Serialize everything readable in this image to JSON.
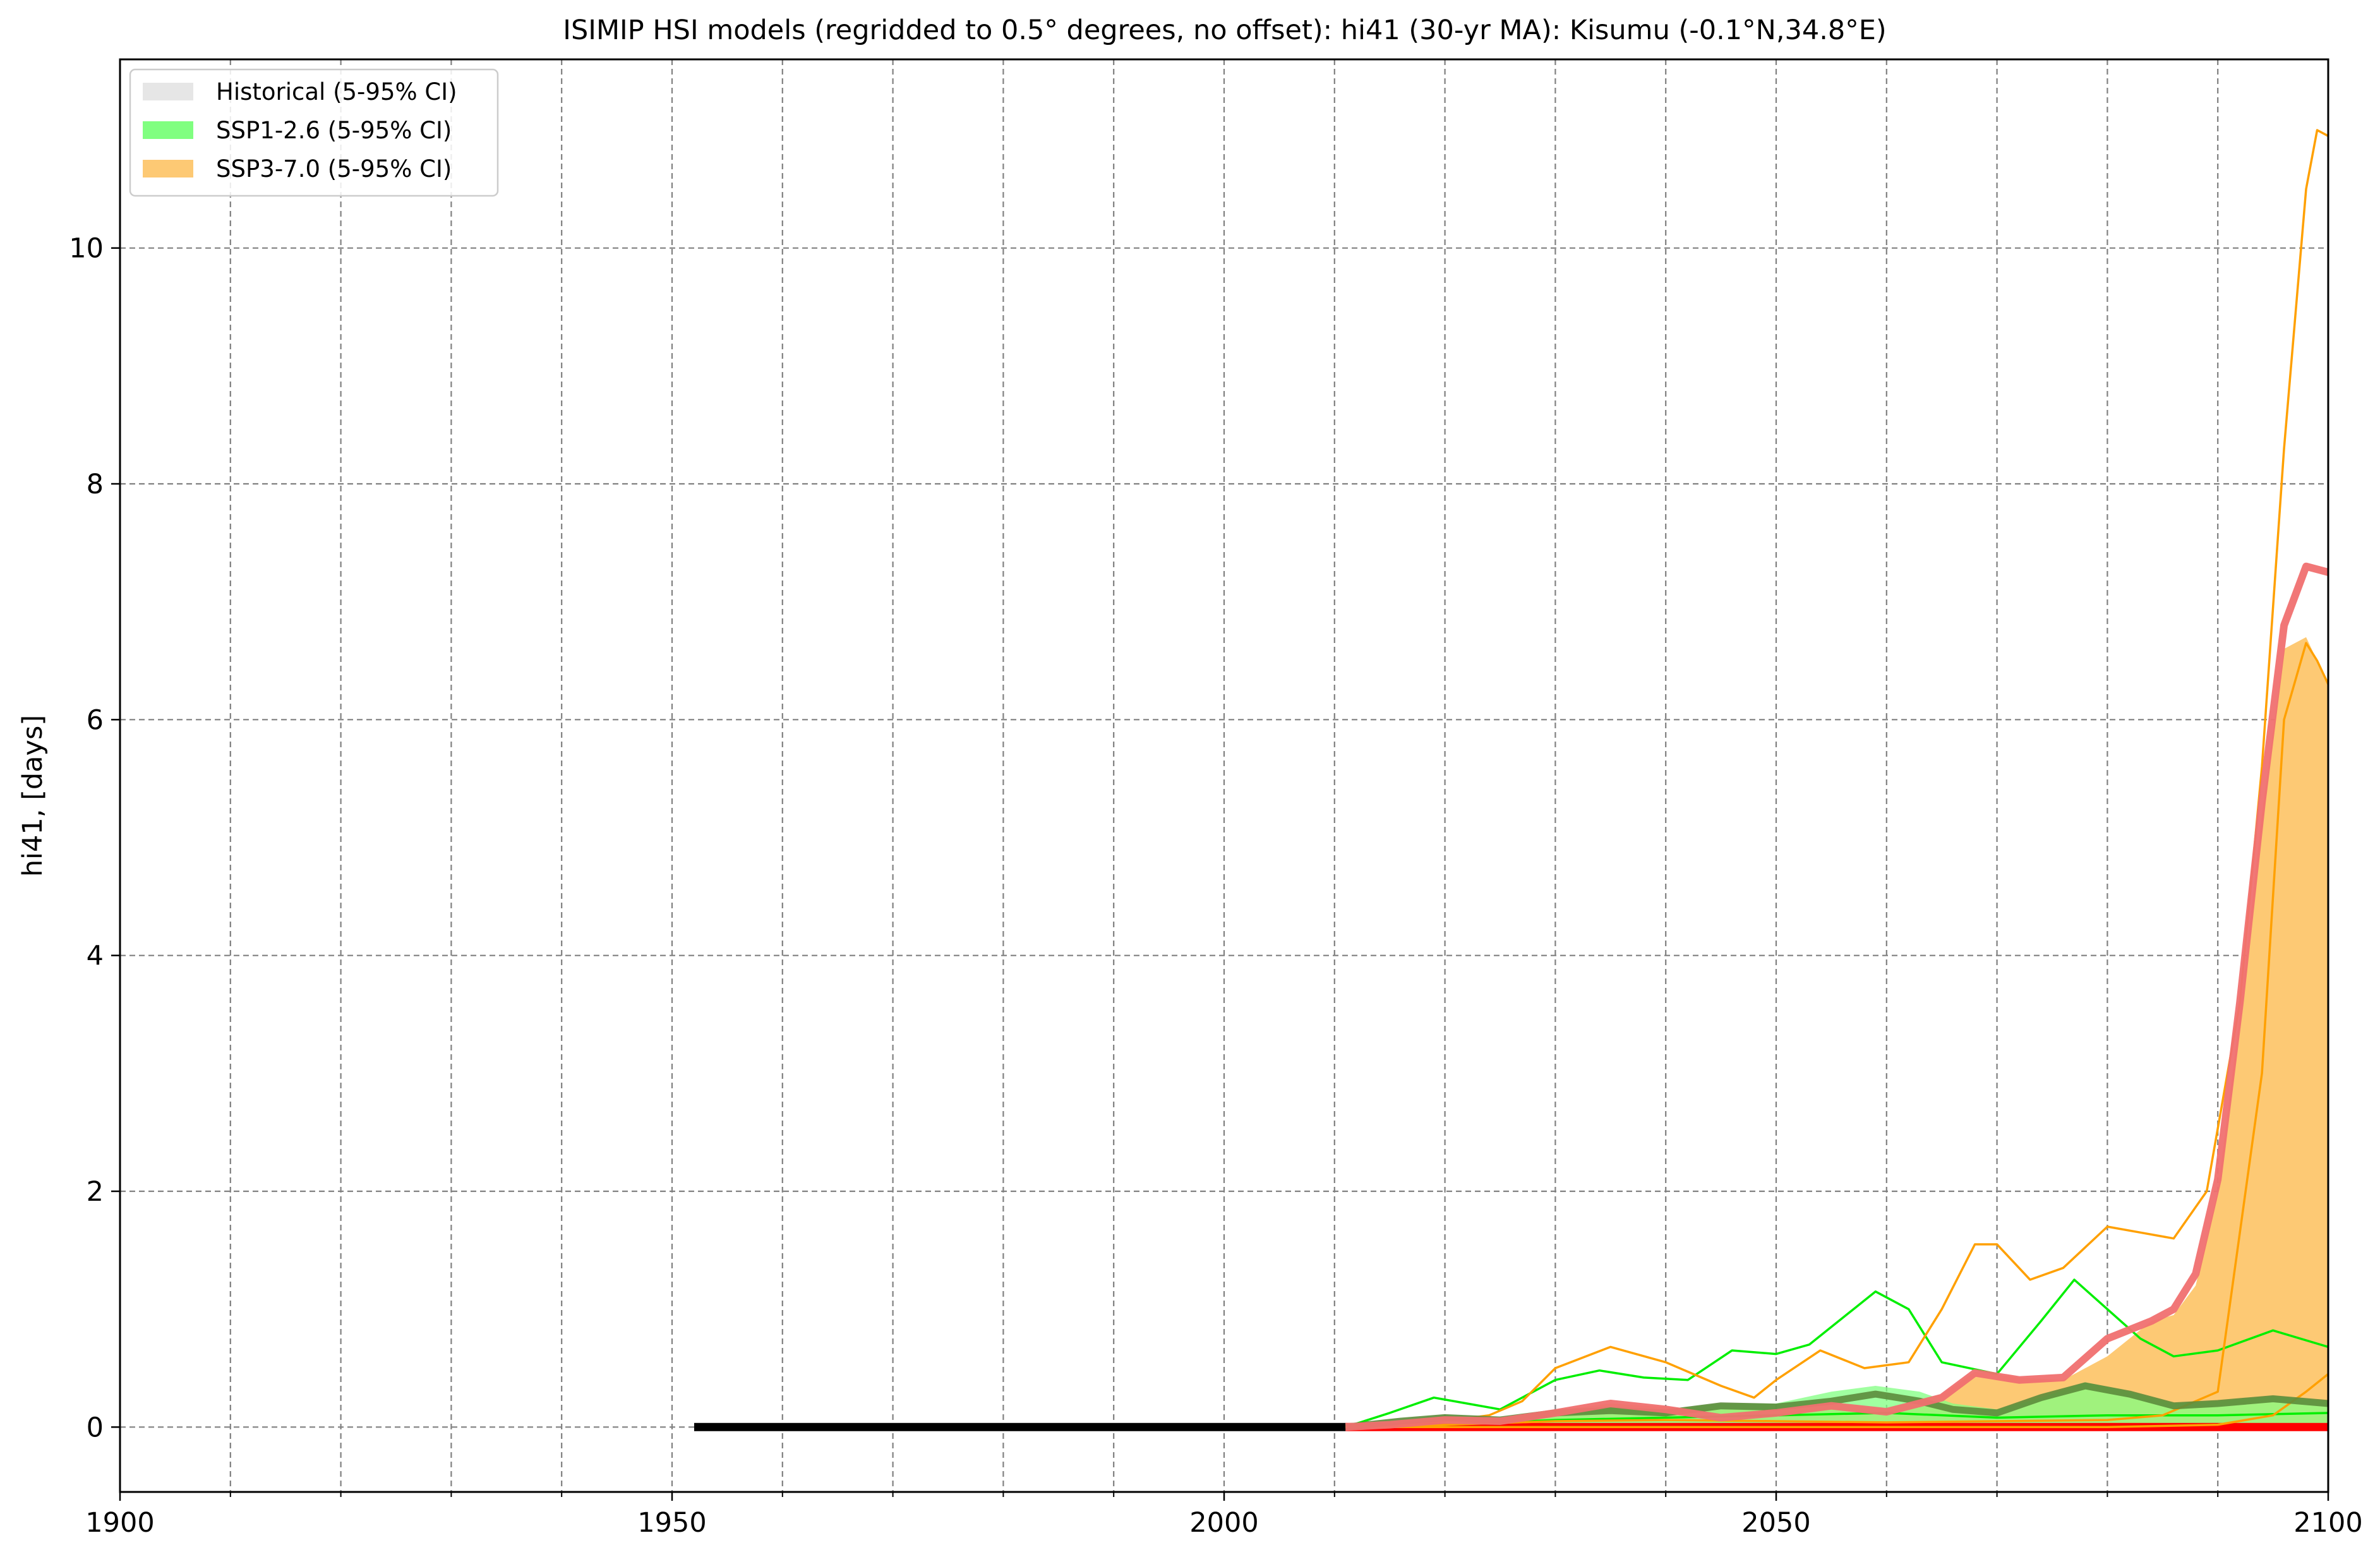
{
  "chart_data": {
    "type": "line",
    "title": "ISIMIP HSI models (regridded to 0.5° degrees, no offset): hi41 (30-yr MA): Kisumu (-0.1°N,34.8°E)",
    "xlabel": "",
    "ylabel": "hi41, [days]",
    "xlim": [
      1900,
      2100
    ],
    "ylim": [
      -0.55,
      11.6
    ],
    "x_ticks": [
      1900,
      1950,
      2000,
      2050,
      2100
    ],
    "x_minor_grid": [
      1910,
      1920,
      1930,
      1940,
      1960,
      1970,
      1980,
      1990,
      2010,
      2020,
      2030,
      2040,
      2060,
      2070,
      2080,
      2090
    ],
    "y_ticks": [
      0,
      2,
      4,
      6,
      8,
      10
    ],
    "grid": true,
    "legend_position": "top-left",
    "legend": [
      {
        "label": "Historical (5-95% CI)",
        "color": "#e6e6e6"
      },
      {
        "label": "SSP1-2.6 (5-95% CI)",
        "color": "#80ff80"
      },
      {
        "label": "SSP3-7.0 (5-95% CI)",
        "color": "#fdc974"
      }
    ],
    "colors": {
      "historical_mean": "#000000",
      "ssp126_band": "#80ff80",
      "ssp126_models": "#00ee00",
      "ssp126_median": "#5c8c3c",
      "ssp370_band": "#fdc974",
      "ssp370_models": "#ffa000",
      "ssp370_median": "#f07070",
      "ssp370_zero": "#ff0000",
      "grid": "#808080"
    },
    "series": [
      {
        "key": "historical_mean",
        "points": [
          [
            1952,
            0
          ],
          [
            2011,
            0
          ]
        ]
      },
      {
        "key": "ssp370_zero",
        "points": [
          [
            2011,
            0
          ],
          [
            2100,
            0
          ]
        ]
      },
      {
        "key": "ssp370_band",
        "upper": [
          [
            2011,
            0
          ],
          [
            2015,
            0.02
          ],
          [
            2020,
            0.06
          ],
          [
            2025,
            0.08
          ],
          [
            2030,
            0.14
          ],
          [
            2035,
            0.2
          ],
          [
            2040,
            0.17
          ],
          [
            2045,
            0.15
          ],
          [
            2050,
            0.15
          ],
          [
            2055,
            0.2
          ],
          [
            2060,
            0.15
          ],
          [
            2065,
            0.28
          ],
          [
            2068,
            0.47
          ],
          [
            2072,
            0.42
          ],
          [
            2076,
            0.4
          ],
          [
            2080,
            0.6
          ],
          [
            2084,
            0.9
          ],
          [
            2086,
            0.95
          ],
          [
            2088,
            1.2
          ],
          [
            2090,
            2.0
          ],
          [
            2092,
            3.5
          ],
          [
            2094,
            5.2
          ],
          [
            2096,
            6.6
          ],
          [
            2098,
            6.7
          ],
          [
            2100,
            6.3
          ]
        ],
        "lower": [
          [
            2011,
            0
          ],
          [
            2100,
            0
          ]
        ]
      },
      {
        "key": "ssp126_band",
        "upper": [
          [
            2011,
            0
          ],
          [
            2016,
            0.06
          ],
          [
            2020,
            0.1
          ],
          [
            2025,
            0.08
          ],
          [
            2030,
            0.15
          ],
          [
            2035,
            0.18
          ],
          [
            2040,
            0.15
          ],
          [
            2045,
            0.2
          ],
          [
            2050,
            0.2
          ],
          [
            2055,
            0.3
          ],
          [
            2059,
            0.35
          ],
          [
            2063,
            0.3
          ],
          [
            2066,
            0.2
          ],
          [
            2070,
            0.15
          ],
          [
            2074,
            0.25
          ],
          [
            2078,
            0.38
          ],
          [
            2082,
            0.3
          ],
          [
            2086,
            0.2
          ],
          [
            2090,
            0.22
          ],
          [
            2095,
            0.26
          ],
          [
            2100,
            0.22
          ]
        ],
        "lower": [
          [
            2011,
            0
          ],
          [
            2100,
            0
          ]
        ]
      },
      {
        "key": "ssp126_models",
        "points": [
          [
            2011,
            0
          ],
          [
            2015,
            0.12
          ],
          [
            2019,
            0.25
          ],
          [
            2022,
            0.2
          ],
          [
            2025,
            0.15
          ],
          [
            2030,
            0.4
          ],
          [
            2034,
            0.48
          ],
          [
            2038,
            0.42
          ],
          [
            2042,
            0.4
          ],
          [
            2046,
            0.65
          ],
          [
            2050,
            0.62
          ],
          [
            2053,
            0.7
          ],
          [
            2057,
            1.0
          ],
          [
            2059,
            1.15
          ],
          [
            2062,
            1.0
          ],
          [
            2065,
            0.55
          ],
          [
            2070,
            0.45
          ],
          [
            2074,
            0.9
          ],
          [
            2077,
            1.25
          ],
          [
            2080,
            1.0
          ],
          [
            2083,
            0.75
          ],
          [
            2086,
            0.6
          ],
          [
            2090,
            0.65
          ],
          [
            2095,
            0.82
          ],
          [
            2100,
            0.68
          ]
        ]
      },
      {
        "key": "ssp126_models",
        "points": [
          [
            2011,
            0
          ],
          [
            2020,
            0.02
          ],
          [
            2030,
            0.06
          ],
          [
            2040,
            0.08
          ],
          [
            2050,
            0.1
          ],
          [
            2060,
            0.12
          ],
          [
            2070,
            0.08
          ],
          [
            2080,
            0.1
          ],
          [
            2090,
            0.1
          ],
          [
            2100,
            0.12
          ]
        ]
      },
      {
        "key": "ssp370_models",
        "points": [
          [
            2011,
            0
          ],
          [
            2015,
            0.02
          ],
          [
            2020,
            0.05
          ],
          [
            2024,
            0.1
          ],
          [
            2027,
            0.22
          ],
          [
            2030,
            0.5
          ],
          [
            2035,
            0.68
          ],
          [
            2040,
            0.55
          ],
          [
            2045,
            0.35
          ],
          [
            2048,
            0.25
          ],
          [
            2050,
            0.4
          ],
          [
            2054,
            0.65
          ],
          [
            2058,
            0.5
          ],
          [
            2062,
            0.55
          ],
          [
            2065,
            1.0
          ],
          [
            2068,
            1.55
          ],
          [
            2070,
            1.55
          ],
          [
            2073,
            1.25
          ],
          [
            2076,
            1.35
          ],
          [
            2080,
            1.7
          ],
          [
            2083,
            1.65
          ],
          [
            2086,
            1.6
          ],
          [
            2089,
            2.0
          ],
          [
            2092,
            3.6
          ],
          [
            2094,
            5.6
          ],
          [
            2096,
            8.3
          ],
          [
            2098,
            10.5
          ],
          [
            2099,
            11.0
          ],
          [
            2100,
            10.95
          ]
        ]
      },
      {
        "key": "ssp370_models",
        "points": [
          [
            2011,
            0
          ],
          [
            2020,
            0.02
          ],
          [
            2030,
            0.05
          ],
          [
            2040,
            0.06
          ],
          [
            2050,
            0.05
          ],
          [
            2060,
            0.04
          ],
          [
            2070,
            0.05
          ],
          [
            2080,
            0.06
          ],
          [
            2085,
            0.1
          ],
          [
            2090,
            0.3
          ],
          [
            2094,
            3.0
          ],
          [
            2096,
            6.0
          ],
          [
            2098,
            6.65
          ],
          [
            2099,
            6.5
          ],
          [
            2100,
            6.3
          ]
        ]
      },
      {
        "key": "ssp370_models",
        "points": [
          [
            2011,
            0
          ],
          [
            2030,
            0
          ],
          [
            2060,
            0
          ],
          [
            2080,
            0
          ],
          [
            2090,
            0.02
          ],
          [
            2095,
            0.1
          ],
          [
            2098,
            0.3
          ],
          [
            2100,
            0.45
          ]
        ]
      },
      {
        "key": "ssp126_median",
        "points": [
          [
            2011,
            0
          ],
          [
            2016,
            0.05
          ],
          [
            2020,
            0.08
          ],
          [
            2025,
            0.06
          ],
          [
            2030,
            0.12
          ],
          [
            2035,
            0.14
          ],
          [
            2040,
            0.12
          ],
          [
            2045,
            0.18
          ],
          [
            2050,
            0.17
          ],
          [
            2055,
            0.22
          ],
          [
            2059,
            0.28
          ],
          [
            2063,
            0.22
          ],
          [
            2066,
            0.15
          ],
          [
            2070,
            0.12
          ],
          [
            2074,
            0.25
          ],
          [
            2078,
            0.35
          ],
          [
            2082,
            0.28
          ],
          [
            2086,
            0.18
          ],
          [
            2090,
            0.2
          ],
          [
            2095,
            0.24
          ],
          [
            2100,
            0.2
          ]
        ]
      },
      {
        "key": "ssp370_median",
        "points": [
          [
            2011,
            0
          ],
          [
            2015,
            0.02
          ],
          [
            2020,
            0.06
          ],
          [
            2025,
            0.05
          ],
          [
            2030,
            0.12
          ],
          [
            2035,
            0.2
          ],
          [
            2040,
            0.15
          ],
          [
            2045,
            0.08
          ],
          [
            2050,
            0.12
          ],
          [
            2055,
            0.18
          ],
          [
            2060,
            0.13
          ],
          [
            2065,
            0.25
          ],
          [
            2068,
            0.46
          ],
          [
            2072,
            0.4
          ],
          [
            2076,
            0.42
          ],
          [
            2080,
            0.75
          ],
          [
            2084,
            0.9
          ],
          [
            2086,
            1.0
          ],
          [
            2088,
            1.3
          ],
          [
            2090,
            2.1
          ],
          [
            2092,
            3.6
          ],
          [
            2094,
            5.3
          ],
          [
            2096,
            6.8
          ],
          [
            2098,
            7.3
          ],
          [
            2100,
            7.25
          ]
        ]
      }
    ]
  }
}
